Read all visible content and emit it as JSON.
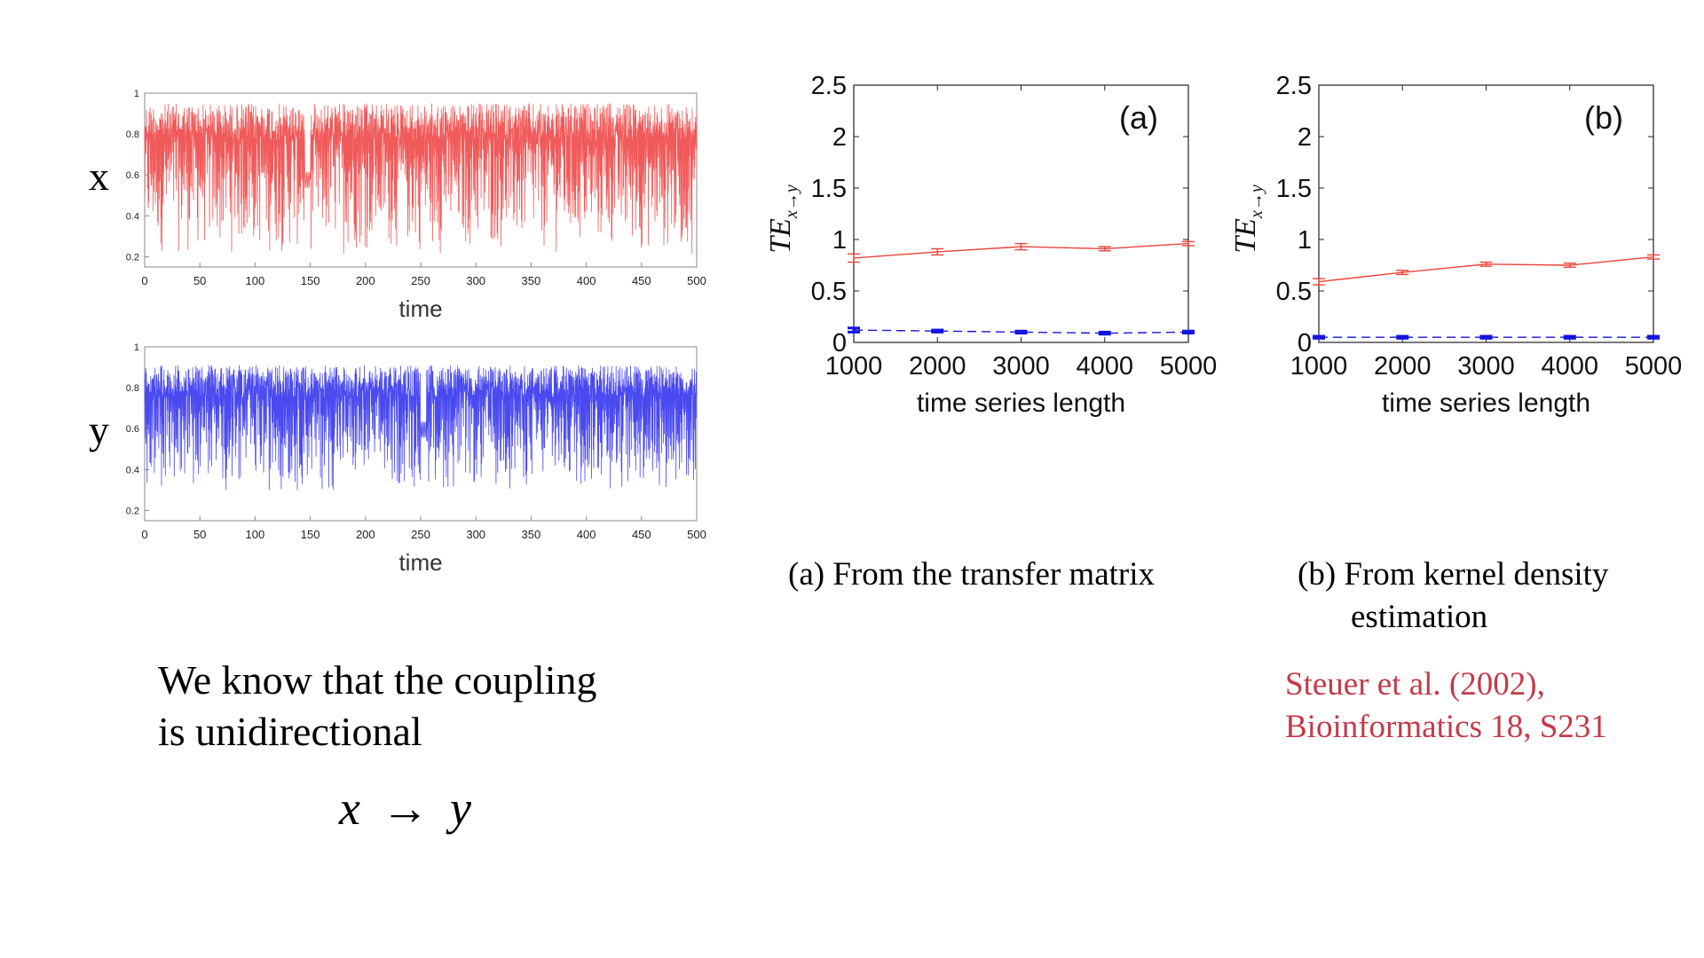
{
  "colors": {
    "x_series": "#f05a5a",
    "y_series": "#4a4af0",
    "te_xy": "#e8443a",
    "te_yx": "#1414e0",
    "citation": "#c43a48"
  },
  "left": {
    "x_label": "x",
    "y_label": "y",
    "statement_line1": "We know that the coupling",
    "statement_line2": "is unidirectional",
    "formula": {
      "lhs": "x",
      "arrow": "→",
      "rhs": "y"
    }
  },
  "captions": {
    "a": "(a) From the transfer matrix",
    "b_line1": "(b) From kernel density",
    "b_line2": "estimation"
  },
  "citation": {
    "line1": "Steuer et al. (2002),",
    "line2": "Bioinformatics 18, S231"
  },
  "chart_data": [
    {
      "id": "x-timeseries",
      "type": "line",
      "xlabel": "time",
      "xlim": [
        0,
        500
      ],
      "ylim": [
        0.15,
        1
      ],
      "xticks": [
        "0",
        "50",
        "100",
        "150",
        "200",
        "250",
        "300",
        "350",
        "400",
        "450",
        "500"
      ],
      "yticks": [
        "0.2",
        "0.4",
        "0.6",
        "0.8",
        "1"
      ],
      "series": [
        {
          "color": "#f05a5a",
          "range": [
            0.2,
            0.95
          ],
          "quiet": [
            145,
            150
          ],
          "note_values": "dense chaotic oscillation between ~0.2 and ~0.95"
        }
      ]
    },
    {
      "id": "y-timeseries",
      "type": "line",
      "xlabel": "time",
      "xlim": [
        0,
        500
      ],
      "ylim": [
        0.15,
        1
      ],
      "xticks": [
        "0",
        "50",
        "100",
        "150",
        "200",
        "250",
        "300",
        "350",
        "400",
        "450",
        "500"
      ],
      "yticks": [
        "0.2",
        "0.4",
        "0.6",
        "0.8",
        "1"
      ],
      "series": [
        {
          "color": "#4a4af0",
          "range": [
            0.28,
            0.91
          ],
          "quiet": [
            250,
            255
          ]
        }
      ]
    },
    {
      "id": "te-a",
      "type": "line",
      "panel_label": "(a)",
      "xlabel": "time series length",
      "ylabel": "TE",
      "ylabel_sub": "x→y",
      "xlim": [
        1000,
        5000
      ],
      "ylim": [
        0,
        2.5
      ],
      "xticks": [
        "1000",
        "2000",
        "3000",
        "4000",
        "5000"
      ],
      "yticks": [
        "0",
        "0.5",
        "1",
        "1.5",
        "2",
        "2.5"
      ],
      "x": [
        1000,
        2000,
        3000,
        4000,
        5000
      ],
      "series": [
        {
          "values": [
            0.82,
            0.88,
            0.93,
            0.91,
            0.96
          ],
          "err": [
            0.04,
            0.03,
            0.03,
            0.02,
            0.02
          ],
          "dashed": false,
          "color": "#e8443a"
        },
        {
          "values": [
            0.12,
            0.11,
            0.1,
            0.09,
            0.1
          ],
          "err": [
            0.02,
            0.01,
            0.01,
            0.01,
            0.01
          ],
          "dashed": true,
          "color": "#1414e0"
        }
      ]
    },
    {
      "id": "te-b",
      "type": "line",
      "panel_label": "(b)",
      "xlabel": "time series length",
      "ylabel": "TE",
      "ylabel_sub": "x→y",
      "xlim": [
        1000,
        5000
      ],
      "ylim": [
        0,
        2.5
      ],
      "xticks": [
        "1000",
        "2000",
        "3000",
        "4000",
        "5000"
      ],
      "yticks": [
        "0",
        "0.5",
        "1",
        "1.5",
        "2",
        "2.5"
      ],
      "x": [
        1000,
        2000,
        3000,
        4000,
        5000
      ],
      "series": [
        {
          "values": [
            0.59,
            0.68,
            0.76,
            0.75,
            0.83
          ],
          "err": [
            0.03,
            0.02,
            0.02,
            0.02,
            0.02
          ],
          "dashed": false,
          "color": "#e8443a"
        },
        {
          "values": [
            0.05,
            0.05,
            0.05,
            0.05,
            0.05
          ],
          "err": [
            0.01,
            0.01,
            0.01,
            0.01,
            0.01
          ],
          "dashed": true,
          "color": "#1414e0"
        }
      ]
    }
  ]
}
